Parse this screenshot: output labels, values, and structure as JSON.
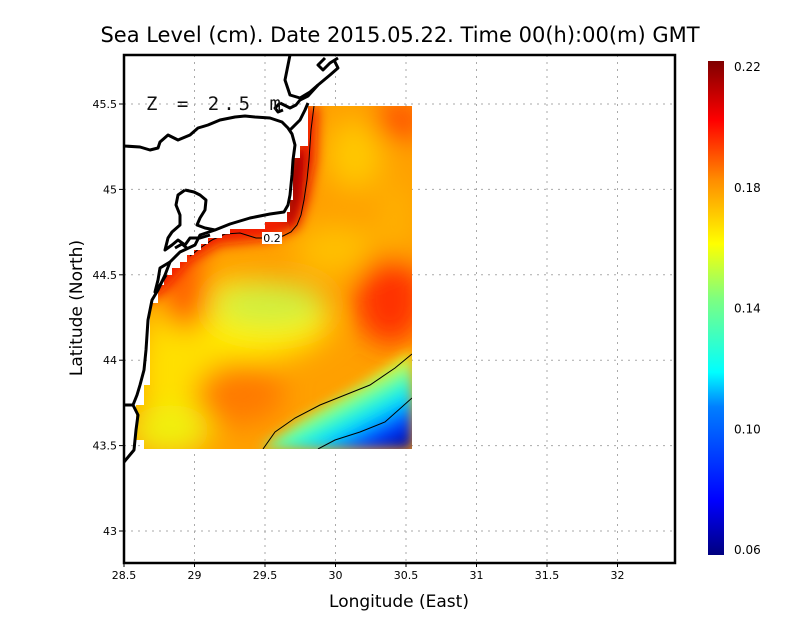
{
  "chart_data": {
    "type": "heatmap",
    "title": "Sea Level (cm). Date 2015.05.22. Time 00(h):00(m) GMT",
    "xlabel": "Longitude (East)",
    "ylabel": "Latitude (North)",
    "xlim": [
      28.5,
      32.4
    ],
    "ylim": [
      42.8,
      45.8
    ],
    "x_ticks": [
      "28.5",
      "29",
      "29.5",
      "30",
      "30.5",
      "31",
      "31.5",
      "32"
    ],
    "y_ticks": [
      "43",
      "43.5",
      "44",
      "44.5",
      "45",
      "45.5"
    ],
    "grid": true,
    "annotation": "Z = 2.5 m",
    "contour_label": "0.2",
    "colorbar": {
      "min": 0.06,
      "max": 0.22,
      "ticks": [
        "0.06",
        "0.10",
        "0.14",
        "0.18",
        "0.22"
      ],
      "colormap": [
        "#00007f",
        "#0000ff",
        "#007fff",
        "#00ffff",
        "#7fff7f",
        "#ffff00",
        "#ff7f00",
        "#ff0000",
        "#7f0000"
      ]
    },
    "field_extent": {
      "lon": [
        28.6,
        30.55
      ],
      "lat": [
        43.49,
        45.5
      ]
    },
    "field_features": [
      {
        "name": "coastal maximum",
        "lon": 29.7,
        "lat": 44.85,
        "value": 0.21
      },
      {
        "name": "central minimum",
        "lon": 29.55,
        "lat": 44.3,
        "value": 0.16
      },
      {
        "name": "eastern maximum",
        "lon": 30.4,
        "lat": 44.35,
        "value": 0.19
      },
      {
        "name": "southwest maximum",
        "lon": 29.25,
        "lat": 43.8,
        "value": 0.185
      },
      {
        "name": "northern minimum",
        "lon": 30.1,
        "lat": 45.3,
        "value": 0.17
      },
      {
        "name": "southeast minimum",
        "lon": 30.5,
        "lat": 43.5,
        "value": 0.07
      }
    ]
  }
}
